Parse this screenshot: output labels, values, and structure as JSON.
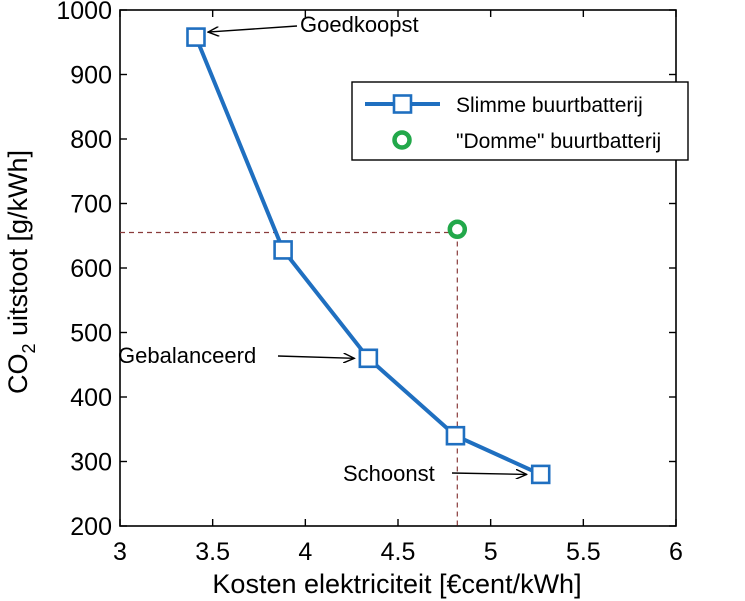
{
  "chart_data": {
    "type": "line",
    "xlabel": "Kosten elektriciteit [€cent/kWh]",
    "ylabel": {
      "prefix": "CO",
      "subscript": "2",
      "suffix": " uitstoot [g/kWh]"
    },
    "xlim": [
      3,
      6
    ],
    "ylim": [
      200,
      1000
    ],
    "xticks": [
      "3",
      "3.5",
      "4",
      "4.5",
      "5",
      "5.5",
      "6"
    ],
    "yticks": [
      "200",
      "300",
      "400",
      "500",
      "600",
      "700",
      "800",
      "900",
      "1000"
    ],
    "grid": false,
    "legend_position": "top-right",
    "series": [
      {
        "name": "Slimme buurtbatterij",
        "marker": "square",
        "color": "#1f6fc0",
        "x": [
          3.41,
          3.88,
          4.34,
          4.81,
          5.27
        ],
        "y": [
          958,
          628,
          460,
          340,
          280
        ]
      },
      {
        "name": "\"Domme\" buurtbatterij",
        "marker": "circle",
        "color": "#22a84a",
        "x": [
          4.82
        ],
        "y": [
          660
        ]
      }
    ],
    "reference_lines": {
      "x": 4.82,
      "y": 655
    },
    "annotations": [
      {
        "text": "Goedkoopst",
        "target_x": 3.41,
        "target_y": 958
      },
      {
        "text": "Gebalanceerd",
        "target_x": 4.34,
        "target_y": 460
      },
      {
        "text": "Schoonst",
        "target_x": 5.27,
        "target_y": 280
      }
    ]
  }
}
